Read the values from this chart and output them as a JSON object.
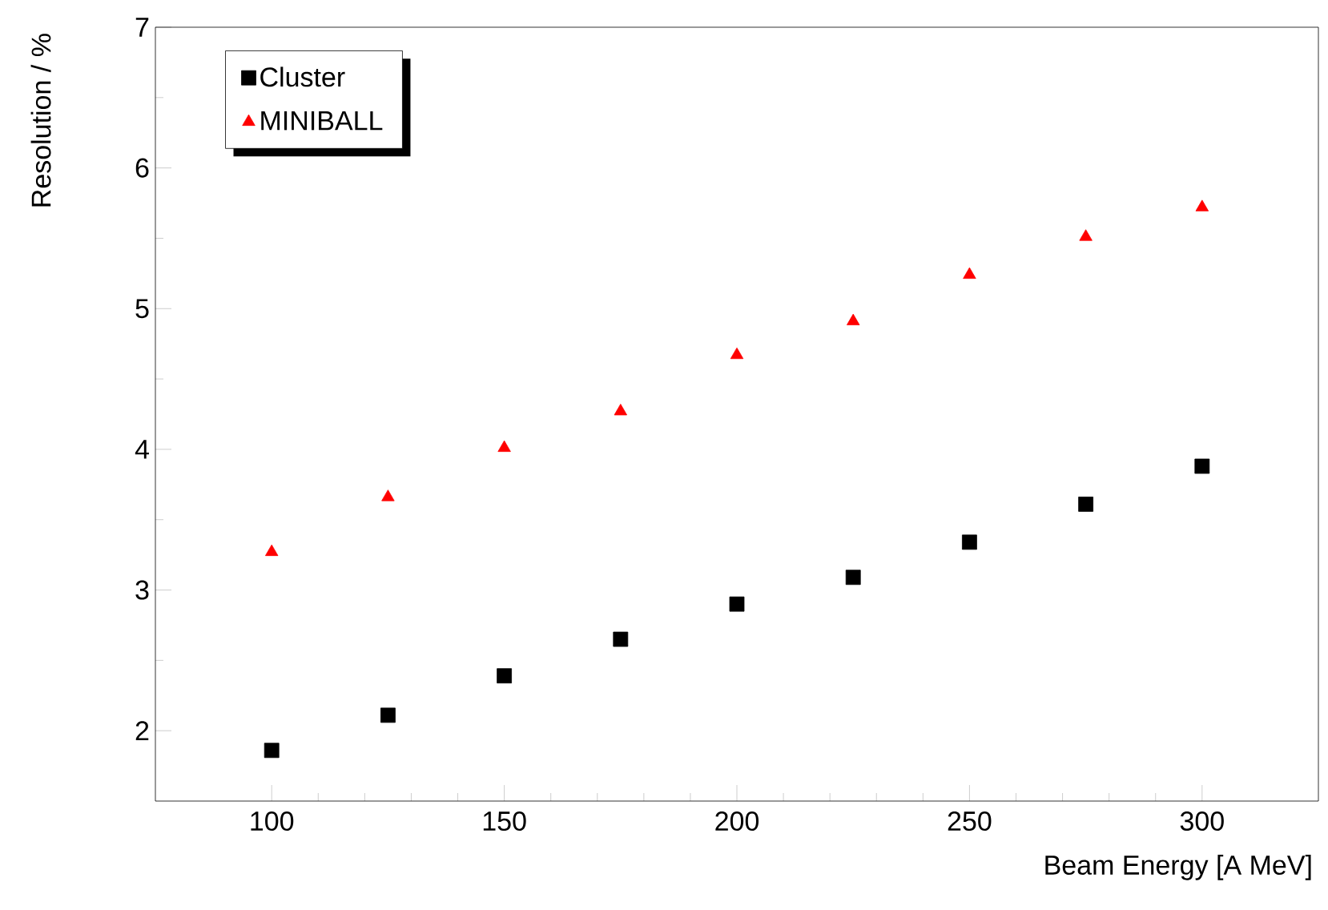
{
  "chart_data": {
    "type": "scatter",
    "xlabel": "Beam Energy [A MeV]",
    "ylabel": "Resolution / %",
    "x": [
      100,
      125,
      150,
      175,
      200,
      225,
      250,
      275,
      300
    ],
    "series": [
      {
        "name": "Cluster",
        "color": "#000000",
        "marker": "square",
        "values": [
          1.86,
          2.11,
          2.39,
          2.65,
          2.9,
          3.09,
          3.34,
          3.61,
          3.88
        ]
      },
      {
        "name": "MINIBALL",
        "color": "#ff0000",
        "marker": "triangle",
        "values": [
          3.27,
          3.66,
          4.01,
          4.27,
          4.67,
          4.91,
          5.24,
          5.51,
          5.72
        ]
      }
    ],
    "xlim": [
      75,
      325
    ],
    "ylim": [
      1.5,
      7
    ],
    "xticks": [
      100,
      150,
      200,
      250,
      300
    ],
    "yticks": [
      2,
      3,
      4,
      5,
      6,
      7
    ],
    "grid": false,
    "legend": "top left"
  }
}
